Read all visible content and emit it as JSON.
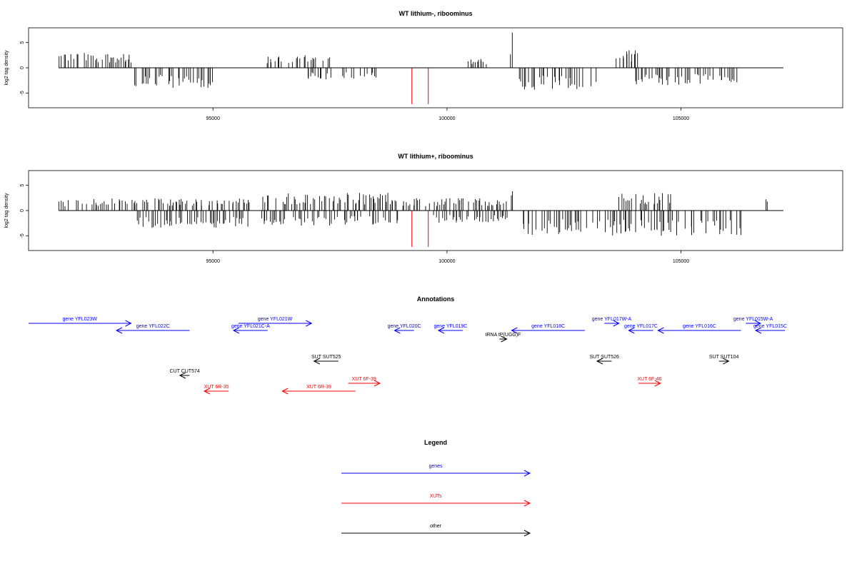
{
  "chart_data": [
    {
      "type": "bar",
      "title": "WT lithium-, riboominus",
      "ylabel": "log2 tag density",
      "xlim": [
        91700,
        107800
      ],
      "ylim": [
        -7.5,
        7.5
      ],
      "xticks": [
        95000,
        100000,
        105000
      ],
      "yticks": [
        5,
        0,
        -5
      ],
      "series_color": "#000000",
      "highlight_color": "#ff0000",
      "regions": [
        {
          "start": 91700,
          "end": 93300,
          "value": 3.0,
          "strand": "+"
        },
        {
          "start": 93300,
          "end": 95000,
          "value": -4.0,
          "strand": "-"
        },
        {
          "start": 96100,
          "end": 97500,
          "value": 2.5,
          "strand": "+"
        },
        {
          "start": 97000,
          "end": 98500,
          "value": -2.5,
          "strand": "-"
        },
        {
          "start": 100450,
          "end": 100900,
          "value": 1.8,
          "strand": "+"
        },
        {
          "start": 101350,
          "end": 101420,
          "value": 7.5,
          "strand": "+"
        },
        {
          "start": 101500,
          "end": 103200,
          "value": -4.5,
          "strand": "-"
        },
        {
          "start": 103600,
          "end": 104150,
          "value": 3.5,
          "strand": "+"
        },
        {
          "start": 104000,
          "end": 105200,
          "value": -3.5,
          "strand": "-"
        },
        {
          "start": 105300,
          "end": 106300,
          "value": -3.5,
          "strand": "-"
        }
      ],
      "highlights": [
        {
          "x": 99250,
          "value": -7.5
        },
        {
          "x": 99600,
          "value": -7.5
        }
      ]
    },
    {
      "type": "bar",
      "title": "WT lithium+, riboominus",
      "ylabel": "log2 tag density",
      "xlim": [
        91700,
        107800
      ],
      "ylim": [
        -7.5,
        7.5
      ],
      "xticks": [
        95000,
        100000,
        105000
      ],
      "yticks": [
        5,
        0,
        -5
      ],
      "series_color": "#000000",
      "highlight_color": "#ff0000",
      "regions": [
        {
          "start": 91700,
          "end": 93400,
          "value": 2.5,
          "strand": "+"
        },
        {
          "start": 93300,
          "end": 95800,
          "value": -3.5,
          "strand": "-"
        },
        {
          "start": 93300,
          "end": 95800,
          "value": 2.5,
          "strand": "+"
        },
        {
          "start": 96000,
          "end": 99000,
          "value": 3.5,
          "strand": "+"
        },
        {
          "start": 96000,
          "end": 99000,
          "value": -3.0,
          "strand": "-"
        },
        {
          "start": 99000,
          "end": 101300,
          "value": 2.5,
          "strand": "+"
        },
        {
          "start": 99700,
          "end": 101300,
          "value": -2.5,
          "strand": "-"
        },
        {
          "start": 101350,
          "end": 101420,
          "value": 7.5,
          "strand": "+"
        },
        {
          "start": 101500,
          "end": 106300,
          "value": -5.0,
          "strand": "-"
        },
        {
          "start": 103600,
          "end": 104800,
          "value": 3.5,
          "strand": "+"
        },
        {
          "start": 106800,
          "end": 106850,
          "value": 3.0,
          "strand": "+"
        }
      ],
      "highlights": [
        {
          "x": 99250,
          "value": -7.5
        },
        {
          "x": 99600,
          "value": -7.5
        }
      ]
    }
  ],
  "annotations": {
    "title": "Annotations",
    "features": [
      {
        "label": "gene YFL023W",
        "type": "gene",
        "start": 91700,
        "end": 93800,
        "row": 0
      },
      {
        "label": "gene YFL022C",
        "type": "gene",
        "start": 93500,
        "end": 95000,
        "row": 1
      },
      {
        "label": "gene YFL021W",
        "type": "gene",
        "start": 96000,
        "end": 97500,
        "row": 0
      },
      {
        "label": "gene YFL021C-A",
        "type": "gene",
        "start": 95900,
        "end": 96600,
        "row": 1
      },
      {
        "label": "gene YFL020C",
        "type": "gene",
        "start": 99200,
        "end": 99600,
        "row": 1
      },
      {
        "label": "gene YFL019C",
        "type": "gene",
        "start": 100100,
        "end": 100600,
        "row": 1
      },
      {
        "label": "tRNA tP(UGG)F",
        "type": "other",
        "start": 101350,
        "end": 101500,
        "row": 2
      },
      {
        "label": "gene YFL018C",
        "type": "gene",
        "start": 101600,
        "end": 103100,
        "row": 1
      },
      {
        "label": "gene YFL017W-A",
        "type": "gene",
        "start": 103500,
        "end": 103800,
        "row": 0
      },
      {
        "label": "gene YFL017C",
        "type": "gene",
        "start": 104000,
        "end": 104500,
        "row": 1
      },
      {
        "label": "gene YFL016C",
        "type": "gene",
        "start": 104600,
        "end": 106300,
        "row": 1
      },
      {
        "label": "gene YFL015W-A",
        "type": "gene",
        "start": 106400,
        "end": 106700,
        "row": 0
      },
      {
        "label": "gene YFL015C",
        "type": "gene",
        "start": 106600,
        "end": 107200,
        "row": 1
      },
      {
        "label": "SUT SUT525",
        "type": "other",
        "start": 97550,
        "end": 98050,
        "row": 3
      },
      {
        "label": "SUT SUT526",
        "type": "other",
        "start": 103350,
        "end": 103650,
        "row": 3
      },
      {
        "label": "SUT SUT104",
        "type": "other",
        "start": 105850,
        "end": 106050,
        "row": 3
      },
      {
        "label": "CUT CUT574",
        "type": "other",
        "start": 94800,
        "end": 95000,
        "row": 4
      },
      {
        "label": "XUT 6R-35",
        "type": "xut",
        "start": 95300,
        "end": 95800,
        "row": 5
      },
      {
        "label": "XUT 6R-39",
        "type": "xut",
        "start": 96900,
        "end": 98400,
        "row": 5
      },
      {
        "label": "XUT 6F-39",
        "type": "xut",
        "start": 98250,
        "end": 98900,
        "row": 4.5
      },
      {
        "label": "XUT 6F-46",
        "type": "xut",
        "start": 104200,
        "end": 104650,
        "row": 4.5
      }
    ]
  },
  "legend": {
    "title": "Legend",
    "items": [
      {
        "label": "genes",
        "color": "#0000ff"
      },
      {
        "label": "XUTs",
        "color": "#ff0000"
      },
      {
        "label": "other",
        "color": "#000000"
      }
    ]
  },
  "colors": {
    "gene": "#0000ff",
    "xut": "#ff0000",
    "other": "#000000"
  }
}
